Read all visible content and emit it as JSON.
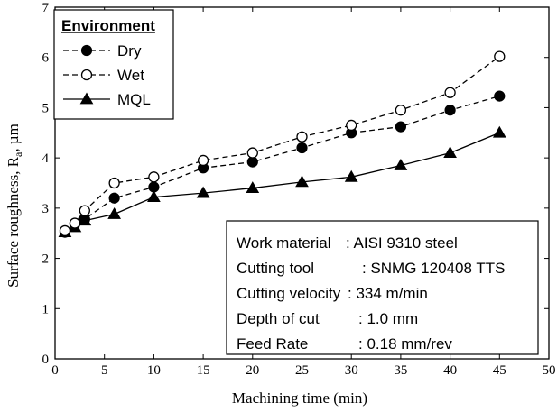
{
  "chart_data": {
    "type": "line",
    "xlabel": "Machining time (min)",
    "ylabel_main": "Surface roughness, R",
    "ylabel_sub": "a",
    "ylabel_unit": ", µm",
    "xlim": [
      0,
      50
    ],
    "ylim": [
      0,
      7
    ],
    "x_ticks": [
      0,
      5,
      10,
      15,
      20,
      25,
      30,
      35,
      40,
      45,
      50
    ],
    "y_ticks": [
      0,
      1,
      2,
      3,
      4,
      5,
      6,
      7
    ],
    "x": [
      1,
      2,
      3,
      6,
      10,
      15,
      20,
      25,
      30,
      35,
      40,
      45
    ],
    "legend_title": "Environment",
    "legend_position": "top-left",
    "series": [
      {
        "name": "Dry",
        "marker": "filled-circle",
        "line": "dashed",
        "values": [
          2.52,
          2.68,
          2.78,
          3.2,
          3.42,
          3.8,
          3.92,
          4.2,
          4.5,
          4.62,
          4.95,
          5.23
        ]
      },
      {
        "name": "Wet",
        "marker": "open-circle",
        "line": "dashed",
        "values": [
          2.55,
          2.7,
          2.95,
          3.5,
          3.62,
          3.95,
          4.1,
          4.42,
          4.65,
          4.95,
          5.3,
          6.02
        ]
      },
      {
        "name": "MQL",
        "marker": "filled-triangle",
        "line": "solid",
        "values": [
          2.52,
          2.62,
          2.75,
          2.88,
          3.22,
          3.3,
          3.4,
          3.52,
          3.62,
          3.85,
          4.1,
          4.5
        ]
      }
    ],
    "info_box": [
      {
        "label": "Work material",
        "value": ":  AISI 9310 steel"
      },
      {
        "label": "Cutting tool",
        "value": ": SNMG 120408 TTS"
      },
      {
        "label": "Cutting velocity",
        "value": ": 334 m/min"
      },
      {
        "label": "Depth of cut",
        "value": ": 1.0 mm"
      },
      {
        "label": "Feed Rate",
        "value": ": 0.18 mm/rev"
      }
    ],
    "colors": {
      "line": "#000000",
      "background": "#ffffff"
    }
  }
}
